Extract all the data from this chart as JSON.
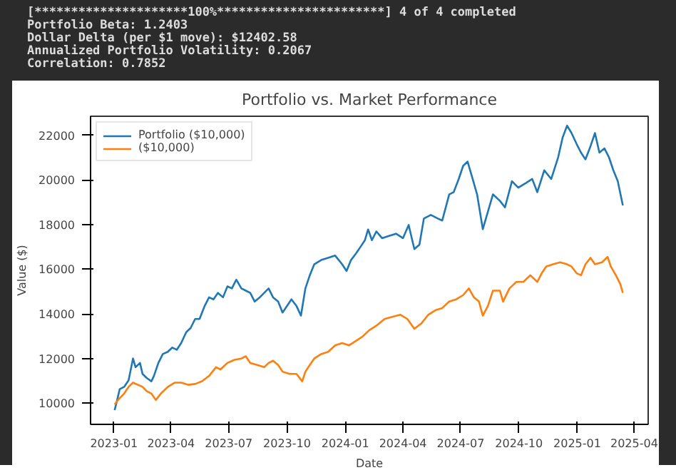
{
  "chart_data": {
    "type": "line",
    "title": "Portfolio vs. Market Performance",
    "xlabel": "Date",
    "ylabel": "Value ($)",
    "annotations": [
      "[*********************100%***********************]  4 of 4 completed",
      "Portfolio Beta: 1.2403",
      "Dollar Delta (per $1 move): $12402.58",
      "Annualized Portfolio Volatility: 0.2067",
      "Correlation: 0.7852"
    ],
    "xlim": [
      "2022-11-25",
      "2025-04-23"
    ],
    "ylim": [
      9050,
      22850
    ],
    "xticks": [
      "2023-01",
      "2023-04",
      "2023-07",
      "2023-10",
      "2024-01",
      "2024-04",
      "2024-07",
      "2024-10",
      "2025-01",
      "2025-04"
    ],
    "yticks": [
      10000,
      12000,
      14000,
      16000,
      18000,
      20000,
      22000
    ],
    "grid": false,
    "legend": "top left",
    "marker": "none",
    "line_style": "solid",
    "series": [
      {
        "name": "Portfolio ($10,000)",
        "color": "#1f77b4",
        "x": [
          "2023-01-02",
          "2023-01-06",
          "2023-01-10",
          "2023-01-17",
          "2023-01-24",
          "2023-01-31",
          "2023-02-04",
          "2023-02-11",
          "2023-02-15",
          "2023-02-22",
          "2023-03-01",
          "2023-03-05",
          "2023-03-12",
          "2023-03-19",
          "2023-03-27",
          "2023-04-03",
          "2023-04-10",
          "2023-04-17",
          "2023-04-25",
          "2023-05-02",
          "2023-05-09",
          "2023-05-16",
          "2023-05-24",
          "2023-05-31",
          "2023-06-07",
          "2023-06-14",
          "2023-06-22",
          "2023-06-29",
          "2023-07-06",
          "2023-07-13",
          "2023-07-21",
          "2023-07-28",
          "2023-08-04",
          "2023-08-11",
          "2023-08-19",
          "2023-08-26",
          "2023-09-02",
          "2023-09-09",
          "2023-09-17",
          "2023-09-24",
          "2023-10-01",
          "2023-10-08",
          "2023-10-16",
          "2023-10-23",
          "2023-10-30",
          "2023-11-06",
          "2023-11-13",
          "2023-11-24",
          "2023-12-05",
          "2023-12-16",
          "2023-12-27",
          "2024-01-03",
          "2024-01-10",
          "2024-01-18",
          "2024-01-25",
          "2024-02-01",
          "2024-02-06",
          "2024-02-12",
          "2024-02-19",
          "2024-02-28",
          "2024-03-10",
          "2024-03-21",
          "2024-04-01",
          "2024-04-10",
          "2024-04-19",
          "2024-04-27",
          "2024-05-04",
          "2024-05-15",
          "2024-05-26",
          "2024-06-02",
          "2024-06-13",
          "2024-06-20",
          "2024-06-28",
          "2024-07-05",
          "2024-07-12",
          "2024-07-19",
          "2024-07-27",
          "2024-08-05",
          "2024-08-14",
          "2024-08-21",
          "2024-09-01",
          "2024-09-09",
          "2024-09-20",
          "2024-09-30",
          "2024-10-11",
          "2024-10-22",
          "2024-10-30",
          "2024-11-10",
          "2024-11-21",
          "2024-12-02",
          "2024-12-09",
          "2024-12-16",
          "2024-12-23",
          "2024-12-31",
          "2025-01-07",
          "2025-01-14",
          "2025-01-22",
          "2025-01-29",
          "2025-02-05",
          "2025-02-13",
          "2025-02-20",
          "2025-02-27",
          "2025-03-06",
          "2025-03-14"
        ],
        "values": [
          9690,
          10140,
          10630,
          10730,
          11020,
          12000,
          11610,
          11800,
          11310,
          11120,
          10980,
          11220,
          11800,
          12200,
          12300,
          12490,
          12390,
          12690,
          13180,
          13370,
          13770,
          13770,
          14350,
          14740,
          14650,
          14940,
          14740,
          15230,
          15140,
          15530,
          15140,
          15040,
          14940,
          14550,
          14740,
          14940,
          15140,
          14740,
          14550,
          14060,
          14350,
          14650,
          14350,
          13920,
          15140,
          15730,
          16220,
          16410,
          16510,
          16610,
          16220,
          15920,
          16410,
          16710,
          17000,
          17300,
          17780,
          17300,
          17690,
          17390,
          17490,
          17590,
          17390,
          17980,
          16900,
          17100,
          18270,
          18430,
          18270,
          18180,
          19350,
          19450,
          20040,
          20630,
          20820,
          20140,
          19350,
          17790,
          18670,
          19350,
          19060,
          18770,
          19940,
          19650,
          19840,
          20040,
          19450,
          20430,
          20040,
          21020,
          21900,
          22430,
          22100,
          21610,
          21220,
          20920,
          21510,
          22100,
          21220,
          21410,
          21020,
          20430,
          19940,
          18860
        ]
      },
      {
        "name": "($10,000)",
        "color": "#ff7f0e",
        "x": [
          "2023-01-02",
          "2023-01-10",
          "2023-01-17",
          "2023-01-24",
          "2023-01-31",
          "2023-02-08",
          "2023-02-15",
          "2023-02-22",
          "2023-03-01",
          "2023-03-08",
          "2023-03-16",
          "2023-03-27",
          "2023-04-07",
          "2023-04-17",
          "2023-04-28",
          "2023-05-09",
          "2023-05-20",
          "2023-05-31",
          "2023-06-11",
          "2023-06-18",
          "2023-06-29",
          "2023-07-10",
          "2023-07-21",
          "2023-07-28",
          "2023-08-04",
          "2023-08-15",
          "2023-08-26",
          "2023-09-02",
          "2023-09-09",
          "2023-09-17",
          "2023-09-24",
          "2023-10-05",
          "2023-10-16",
          "2023-10-25",
          "2023-10-30",
          "2023-11-06",
          "2023-11-13",
          "2023-11-24",
          "2023-12-05",
          "2023-12-16",
          "2023-12-27",
          "2024-01-07",
          "2024-01-18",
          "2024-01-28",
          "2024-02-08",
          "2024-02-19",
          "2024-03-03",
          "2024-03-14",
          "2024-03-28",
          "2024-04-08",
          "2024-04-19",
          "2024-04-30",
          "2024-05-11",
          "2024-05-22",
          "2024-06-02",
          "2024-06-13",
          "2024-06-24",
          "2024-07-05",
          "2024-07-14",
          "2024-07-22",
          "2024-07-30",
          "2024-08-05",
          "2024-08-13",
          "2024-08-21",
          "2024-09-01",
          "2024-09-06",
          "2024-09-16",
          "2024-09-27",
          "2024-10-08",
          "2024-10-19",
          "2024-10-30",
          "2024-11-06",
          "2024-11-13",
          "2024-11-24",
          "2024-12-05",
          "2024-12-16",
          "2024-12-23",
          "2024-12-31",
          "2025-01-07",
          "2025-01-14",
          "2025-01-22",
          "2025-01-29",
          "2025-02-09",
          "2025-02-18",
          "2025-02-23",
          "2025-03-03",
          "2025-03-10",
          "2025-03-14"
        ],
        "values": [
          9940,
          10230,
          10430,
          10730,
          10920,
          10820,
          10730,
          10530,
          10430,
          10140,
          10430,
          10730,
          10920,
          10920,
          10820,
          10860,
          10980,
          11220,
          11610,
          11510,
          11800,
          11940,
          12000,
          12100,
          11800,
          11710,
          11610,
          11800,
          11900,
          11710,
          11410,
          11310,
          11310,
          10980,
          11410,
          11710,
          12000,
          12200,
          12300,
          12590,
          12690,
          12590,
          12790,
          12980,
          13270,
          13470,
          13770,
          13860,
          13960,
          13770,
          13330,
          13570,
          13960,
          14160,
          14260,
          14550,
          14650,
          14840,
          15140,
          14740,
          14550,
          13920,
          14350,
          15040,
          15040,
          14550,
          15140,
          15430,
          15430,
          15730,
          15430,
          15820,
          16120,
          16220,
          16310,
          16220,
          16120,
          15820,
          15730,
          16220,
          16510,
          16220,
          16310,
          16550,
          16120,
          15730,
          15330,
          14940
        ]
      }
    ]
  }
}
